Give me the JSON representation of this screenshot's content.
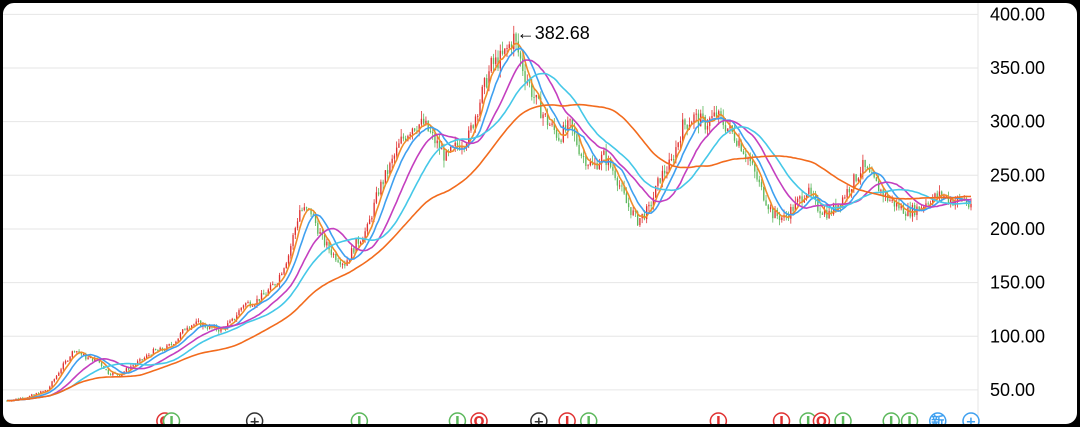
{
  "chart_data": {
    "type": "candlestick",
    "ylim": [
      35,
      405
    ],
    "grid": true,
    "yticks": [
      "400.00",
      "350.00",
      "300.00",
      "250.00",
      "200.00",
      "150.00",
      "100.00",
      "50.00"
    ],
    "ytick_values": [
      400,
      350,
      300,
      250,
      200,
      150,
      100,
      50
    ],
    "annotation": {
      "text": "←382.68",
      "value": 382.68
    },
    "colors": {
      "up": "#e03131",
      "down": "#5cb85c",
      "grid": "#e6e6e6",
      "ma5": "#f08c2a",
      "ma10": "#3fa0f0",
      "ma20": "#c43fbf",
      "ma30": "#45c8e8",
      "ma60": "#f26b1d"
    },
    "close_path": [
      [
        0,
        40
      ],
      [
        10,
        44
      ],
      [
        18,
        50
      ],
      [
        24,
        70
      ],
      [
        30,
        88
      ],
      [
        35,
        80
      ],
      [
        40,
        78
      ],
      [
        45,
        66
      ],
      [
        50,
        64
      ],
      [
        55,
        72
      ],
      [
        60,
        78
      ],
      [
        65,
        86
      ],
      [
        70,
        88
      ],
      [
        75,
        96
      ],
      [
        80,
        110
      ],
      [
        85,
        112
      ],
      [
        90,
        108
      ],
      [
        95,
        106
      ],
      [
        100,
        114
      ],
      [
        105,
        130
      ],
      [
        110,
        132
      ],
      [
        115,
        140
      ],
      [
        120,
        152
      ],
      [
        125,
        176
      ],
      [
        130,
        218
      ],
      [
        135,
        216
      ],
      [
        140,
        190
      ],
      [
        145,
        176
      ],
      [
        150,
        168
      ],
      [
        155,
        186
      ],
      [
        160,
        200
      ],
      [
        165,
        236
      ],
      [
        170,
        258
      ],
      [
        175,
        282
      ],
      [
        180,
        296
      ],
      [
        185,
        298
      ],
      [
        190,
        282
      ],
      [
        195,
        266
      ],
      [
        200,
        278
      ],
      [
        205,
        286
      ],
      [
        210,
        320
      ],
      [
        215,
        352
      ],
      [
        220,
        360
      ],
      [
        225,
        378
      ],
      [
        230,
        344
      ],
      [
        235,
        318
      ],
      [
        240,
        300
      ],
      [
        245,
        286
      ],
      [
        250,
        296
      ],
      [
        255,
        270
      ],
      [
        260,
        258
      ],
      [
        265,
        268
      ],
      [
        270,
        252
      ],
      [
        275,
        224
      ],
      [
        280,
        208
      ],
      [
        285,
        218
      ],
      [
        290,
        248
      ],
      [
        295,
        262
      ],
      [
        300,
        296
      ],
      [
        305,
        304
      ],
      [
        310,
        298
      ],
      [
        315,
        306
      ],
      [
        320,
        294
      ],
      [
        325,
        282
      ],
      [
        330,
        262
      ],
      [
        335,
        236
      ],
      [
        340,
        214
      ],
      [
        345,
        210
      ],
      [
        350,
        222
      ],
      [
        355,
        236
      ],
      [
        360,
        220
      ],
      [
        365,
        214
      ],
      [
        370,
        226
      ],
      [
        375,
        242
      ],
      [
        380,
        258
      ],
      [
        385,
        244
      ],
      [
        390,
        230
      ],
      [
        395,
        222
      ],
      [
        400,
        216
      ],
      [
        405,
        220
      ],
      [
        410,
        228
      ],
      [
        415,
        232
      ],
      [
        420,
        226
      ],
      [
        425,
        228
      ],
      [
        428,
        218
      ]
    ],
    "markers": [
      {
        "index": 95,
        "label": "O",
        "color": "#e03131"
      },
      {
        "index": 99,
        "label": "I",
        "color": "#5cb85c"
      },
      {
        "index": 149,
        "label": "+",
        "color": "#333333"
      },
      {
        "index": 212,
        "label": "I",
        "color": "#5cb85c"
      },
      {
        "index": 271,
        "label": "I",
        "color": "#5cb85c"
      },
      {
        "index": 284,
        "label": "O",
        "color": "#e03131"
      },
      {
        "index": 320,
        "label": "+",
        "color": "#333333"
      },
      {
        "index": 337,
        "label": "I",
        "color": "#e03131"
      },
      {
        "index": 350,
        "label": "I",
        "color": "#5cb85c"
      },
      {
        "index": 428,
        "label": "I",
        "color": "#e03131"
      },
      {
        "index": 466,
        "label": "I",
        "color": "#e03131"
      },
      {
        "index": 482,
        "label": "I",
        "color": "#5cb85c"
      },
      {
        "index": 490,
        "label": "O",
        "color": "#e03131"
      },
      {
        "index": 503,
        "label": "I",
        "color": "#5cb85c"
      },
      {
        "index": 532,
        "label": "I",
        "color": "#5cb85c"
      },
      {
        "index": 543,
        "label": "I",
        "color": "#5cb85c"
      },
      {
        "index": 560,
        "label": "新",
        "color": "#3fa0f0"
      },
      {
        "index": 580,
        "label": "+",
        "color": "#3fa0f0"
      }
    ]
  }
}
